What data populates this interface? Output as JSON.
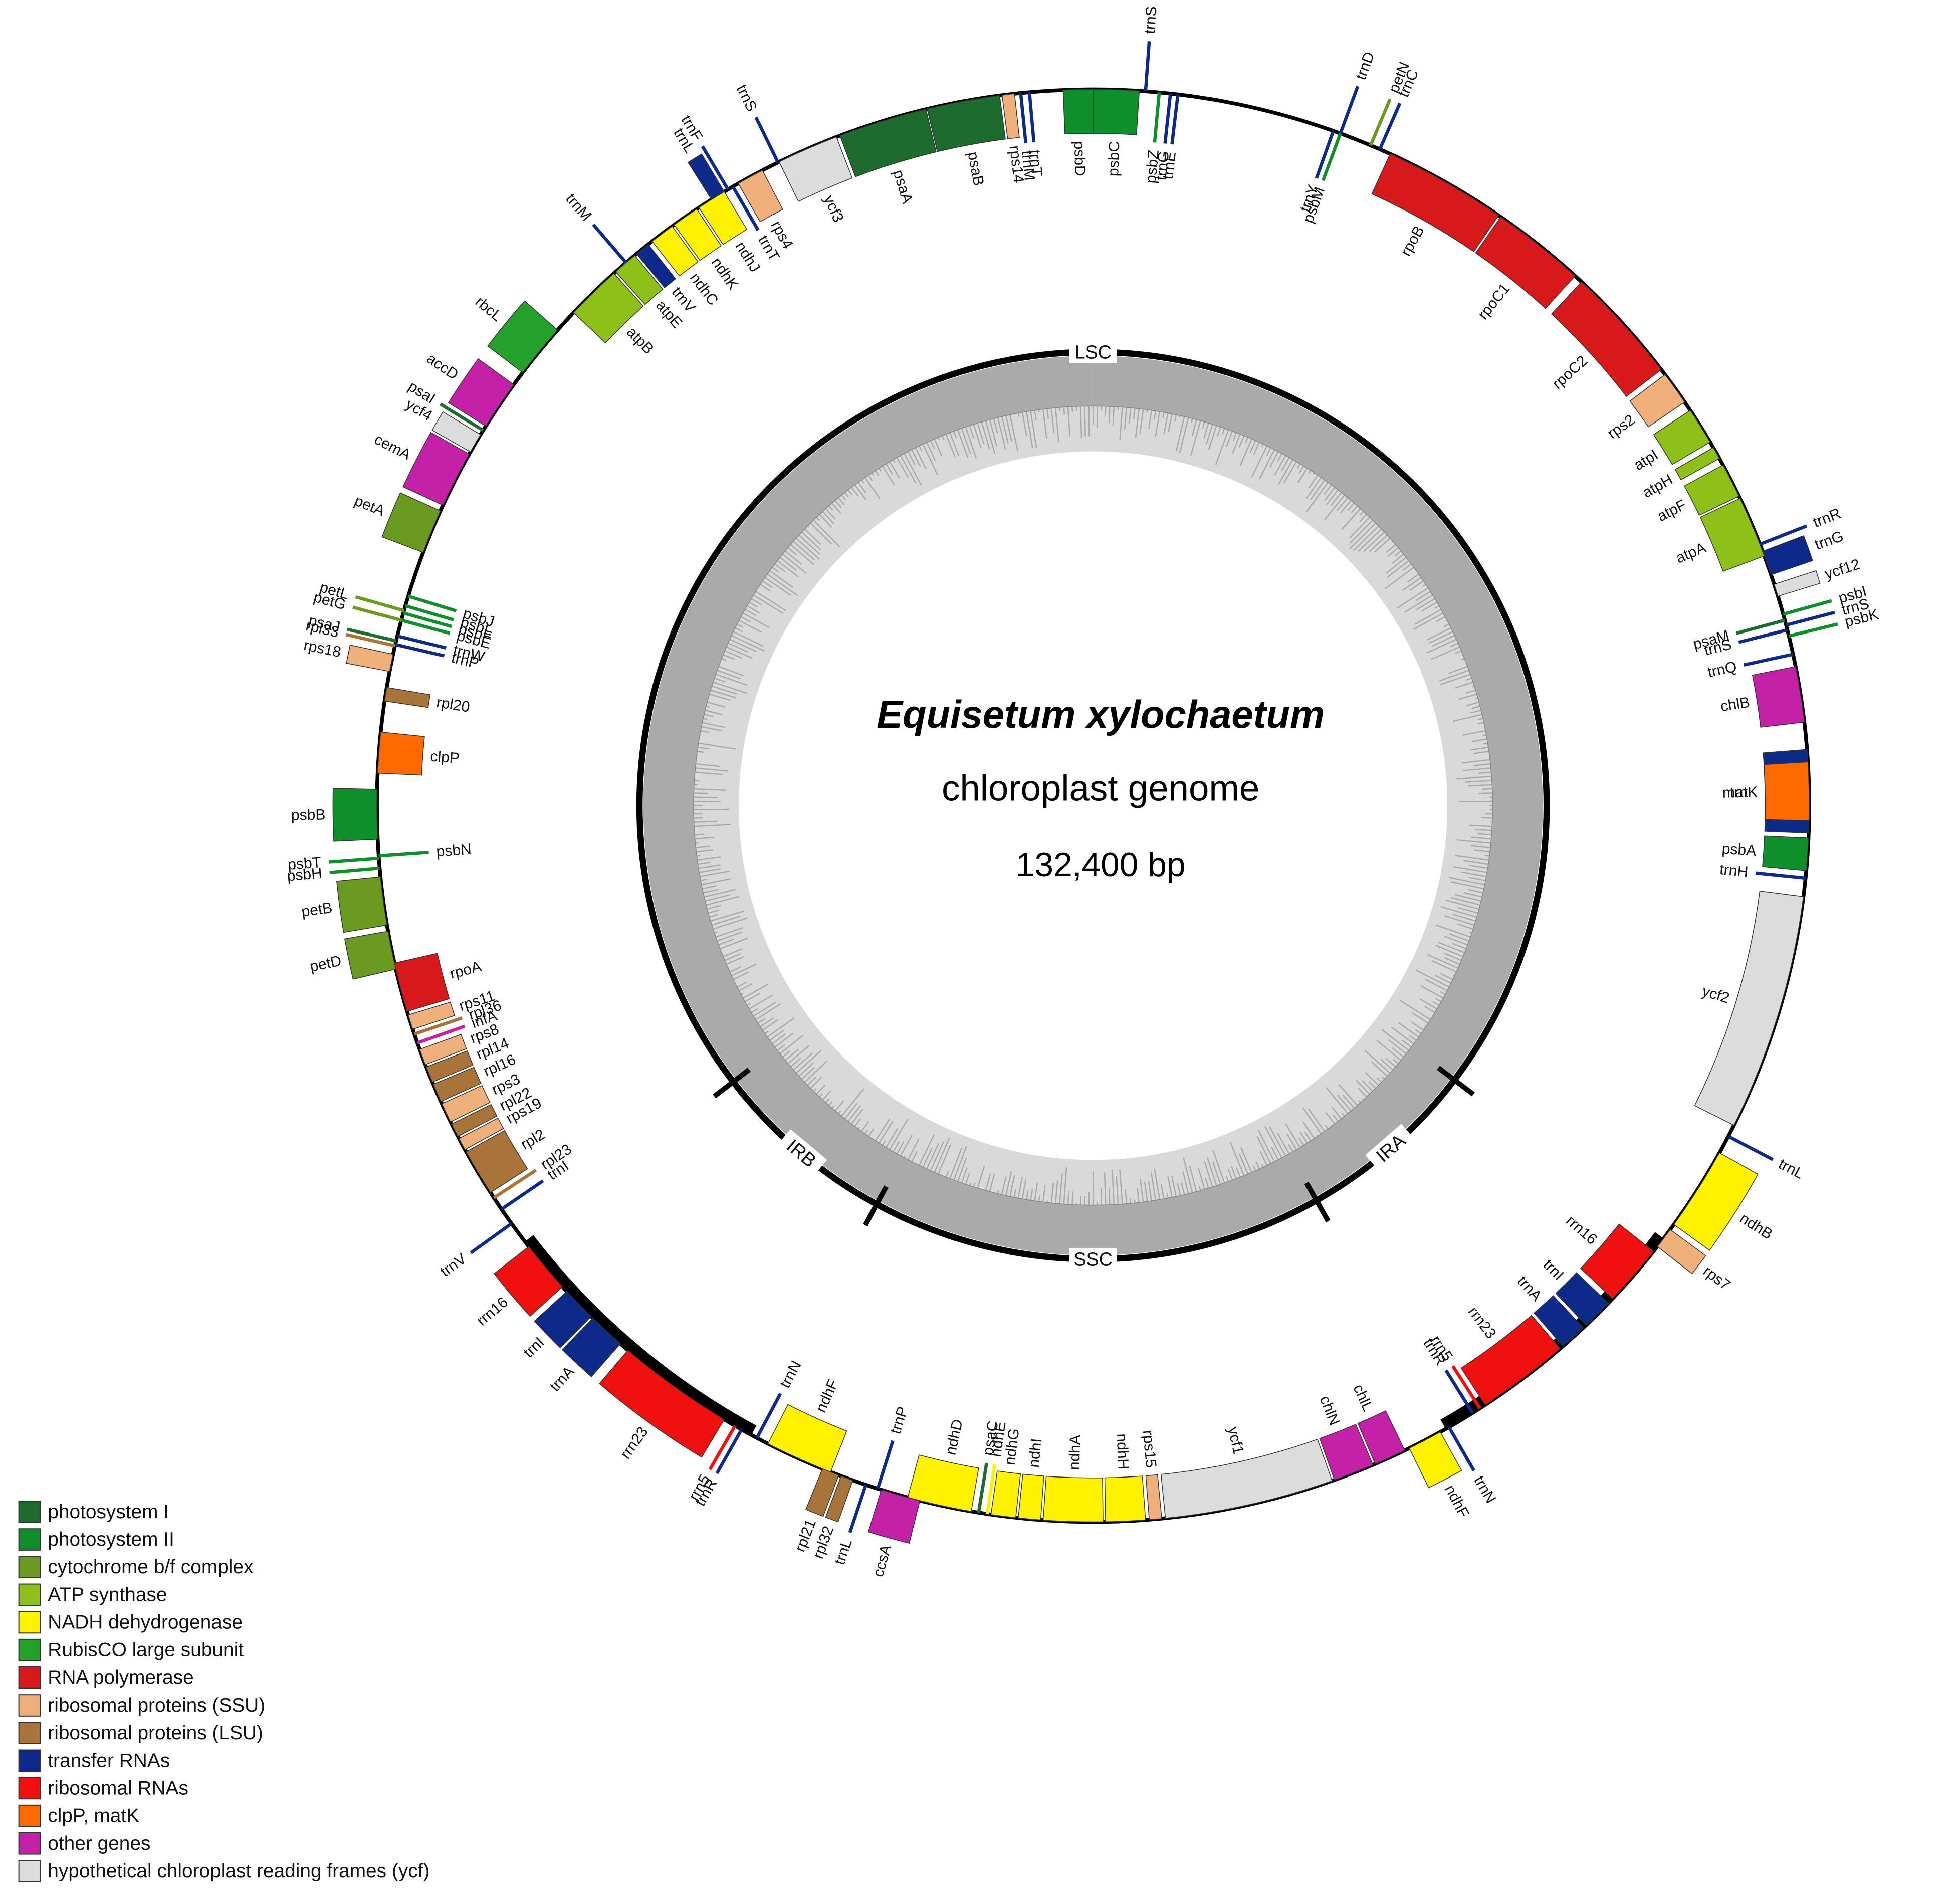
{
  "title": "Equisetum xylochaetum",
  "subtitle": "chloroplast genome",
  "size": "132,400 bp",
  "regions": [
    "LSC",
    "IRA",
    "SSC",
    "IRB"
  ],
  "legend": [
    {
      "name": "photosystem I",
      "color": "#1d6b2e",
      "genes": [
        "psaA",
        "psaB",
        "psaM",
        "psaC",
        "psaJ",
        "psaI"
      ]
    },
    {
      "name": "photosystem II",
      "color": "#0f8f2c",
      "genes": [
        "psbD",
        "psbC",
        "psbZ",
        "psbM",
        "psbI",
        "psbK",
        "psbA",
        "psbH",
        "psbT",
        "psbN",
        "psbB",
        "psbE",
        "psbF",
        "psbL",
        "psbJ"
      ]
    },
    {
      "name": "cytochrome b/f complex",
      "color": "#6a9a1f",
      "genes": [
        "petN",
        "petL",
        "petG",
        "petA",
        "petB",
        "petD"
      ]
    },
    {
      "name": "ATP synthase",
      "color": "#8dc11a",
      "genes": [
        "atpI",
        "atpH",
        "atpF",
        "atpA",
        "atpB",
        "atpE"
      ]
    },
    {
      "name": "NADH dehydrogenase",
      "color": "#fff200",
      "genes": [
        "ndhJ",
        "ndhK",
        "ndhC",
        "ndhB",
        "ndhF",
        "ndhH",
        "ndhA",
        "ndhI",
        "ndhG",
        "ndhE",
        "ndhD",
        "ndhF"
      ]
    },
    {
      "name": "RubisCO large subunit",
      "color": "#23a12a",
      "genes": [
        "rbcL"
      ]
    },
    {
      "name": "RNA polymerase",
      "color": "#d7191c",
      "genes": [
        "rpoB",
        "rpoC1",
        "rpoC2",
        "rpoA"
      ]
    },
    {
      "name": "ribosomal proteins (SSU)",
      "color": "#efb07c",
      "genes": [
        "rps4",
        "rps14",
        "rps2",
        "rps7",
        "rps15",
        "rps18",
        "rps11",
        "rps8",
        "rps3",
        "rps19"
      ]
    },
    {
      "name": "ribosomal proteins (LSU)",
      "color": "#a8743a",
      "genes": [
        "rpl20",
        "rpl33",
        "rpl21",
        "rpl32",
        "rpl36",
        "rpl14",
        "rpl16",
        "rpl22",
        "rpl2",
        "rpl23"
      ]
    },
    {
      "name": "transfer RNAs",
      "color": "#0d2a8a",
      "genes": [
        "trnS",
        "trnG",
        "trnE",
        "trnD",
        "trnC",
        "trnY",
        "trnR",
        "trnG",
        "trnS",
        "trnS",
        "trnQ",
        "trnK",
        "trnH",
        "trnL",
        "trnI",
        "trnA",
        "trnR",
        "trnN",
        "trnP",
        "trnL",
        "trnN",
        "trnR",
        "trnA",
        "trnI",
        "trnV",
        "trnI",
        "trnP",
        "trnW",
        "trnV",
        "trnM",
        "trnL",
        "trnF",
        "trnT",
        "trnS",
        "trnM",
        "trnT"
      ]
    },
    {
      "name": "ribosomal RNAs",
      "color": "#f01010",
      "genes": [
        "rrn16",
        "rrn23",
        "rrn5",
        "rrn16",
        "rrn23",
        "rrn5"
      ]
    },
    {
      "name": "clpP, matK",
      "color": "#ff6a00",
      "genes": [
        "clpP",
        "matK"
      ]
    },
    {
      "name": "other genes",
      "color": "#c520a8",
      "genes": [
        "accD",
        "cemA",
        "chlB",
        "ccsA",
        "chlN",
        "chlL",
        "infA"
      ]
    },
    {
      "name": "hypothetical chloroplast reading frames (ycf)",
      "color": "#dcdcdc",
      "genes": [
        "ycf3",
        "ycf4",
        "ycf12",
        "ycf2",
        "ycf1"
      ]
    }
  ]
}
